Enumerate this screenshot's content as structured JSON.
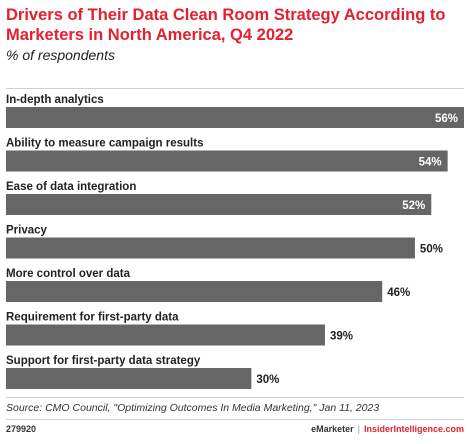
{
  "header": {
    "title": "Drivers of Their Data Clean Room Strategy According to Marketers in North America, Q4 2022",
    "subtitle": "% of respondents"
  },
  "footer": {
    "source": "Source: CMO Council, \"Optimizing Outcomes In Media Marketing,\" Jan 11, 2023",
    "figure_id": "279920",
    "brand_left": "eMarketer",
    "separator": "|",
    "brand_right": "InsiderIntelligence.com"
  },
  "colors": {
    "title": "#e5202e",
    "bar": "#666666",
    "label_on_bar": "#ffffff",
    "label_outside": "#222222"
  },
  "chart_data": {
    "type": "bar",
    "orientation": "horizontal",
    "categories": [
      "In-depth analytics",
      "Ability to measure campaign results",
      "Ease of data integration",
      "Privacy",
      "More control over data",
      "Requirement for first-party data",
      "Support for first-party data strategy"
    ],
    "values": [
      56,
      54,
      52,
      50,
      46,
      39,
      30
    ],
    "value_labels": [
      "56%",
      "54%",
      "52%",
      "50%",
      "46%",
      "39%",
      "30%"
    ],
    "unit": "%",
    "xlim": [
      0,
      56
    ],
    "grid": false,
    "legend": "none"
  }
}
